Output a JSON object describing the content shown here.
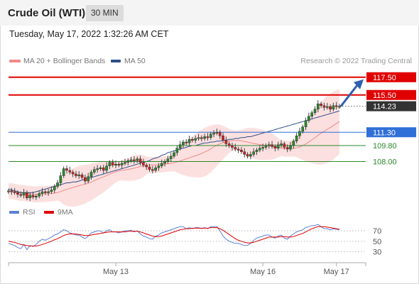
{
  "header": {
    "title": "Crude Oil (WTI)",
    "timeframe": "30 MIN",
    "datetime": "Tuesday, May 17, 2022 1:32:26 AM CET"
  },
  "legend": {
    "items": [
      {
        "label": "MA 20 + Bollinger Bands",
        "color": "#f08a8a"
      },
      {
        "label": "MA 50",
        "color": "#2d4e8a"
      }
    ],
    "credit": "Research © 2022 Trading Central"
  },
  "chart_data": [
    {
      "type": "candlestick",
      "x_ticks": [
        "May 13",
        "May 16",
        "May 17"
      ],
      "y_range": [
        103,
        119
      ],
      "last_price": 114.23,
      "levels": [
        {
          "value": 117.5,
          "label": "117.50",
          "kind": "resistance",
          "color": "#e00000"
        },
        {
          "value": 115.5,
          "label": "115.50",
          "kind": "resistance",
          "color": "#e00000"
        },
        {
          "value": 114.23,
          "label": "114.23",
          "kind": "last",
          "color": "#333333"
        },
        {
          "value": 111.3,
          "label": "111.30",
          "kind": "pivot",
          "color": "#2f6fd8"
        },
        {
          "value": 109.8,
          "label": "109.80",
          "kind": "support",
          "color": "#2a8a2a"
        },
        {
          "value": 108.0,
          "label": "108.00",
          "kind": "support",
          "color": "#2a8a2a"
        }
      ],
      "closes": [
        104.7,
        104.6,
        104.5,
        104.3,
        104.2,
        104.5,
        103.9,
        104.2,
        104.0,
        104.1,
        104.4,
        104.6,
        104.5,
        104.6,
        104.8,
        105.2,
        105.6,
        106.4,
        107.2,
        107.0,
        106.8,
        106.6,
        106.4,
        106.5,
        106.2,
        105.8,
        106.3,
        106.8,
        107.1,
        107.2,
        107.3,
        107.0,
        107.5,
        107.9,
        107.6,
        107.7,
        107.6,
        107.8,
        107.9,
        108.1,
        108.2,
        108.1,
        108.3,
        107.9,
        107.6,
        107.4,
        107.1,
        107.0,
        107.3,
        107.5,
        107.8,
        108.0,
        108.3,
        108.6,
        109.0,
        109.5,
        109.9,
        110.2,
        110.1,
        110.5,
        110.4,
        110.6,
        110.7,
        110.6,
        110.8,
        110.7,
        111.1,
        111.2,
        111.3,
        110.9,
        110.4,
        110.0,
        109.8,
        109.6,
        109.4,
        109.3,
        109.1,
        108.8,
        108.6,
        108.8,
        109.1,
        109.3,
        109.5,
        109.6,
        109.8,
        109.9,
        109.7,
        109.5,
        109.9,
        110.0,
        109.6,
        109.4,
        109.8,
        110.3,
        110.9,
        111.4,
        111.9,
        112.6,
        113.1,
        113.5,
        113.9,
        114.5,
        114.3,
        114.1,
        114.2,
        113.9,
        114.3,
        114.2,
        114.23
      ],
      "ma50": [
        104.9,
        104.8,
        104.7,
        104.6,
        104.5,
        104.5,
        104.5,
        104.5,
        104.5,
        104.6,
        104.7,
        104.8,
        104.9,
        105.0,
        105.1,
        105.2,
        105.3,
        105.4,
        105.5,
        105.6,
        105.6,
        105.7,
        105.7,
        105.8,
        105.9,
        106.0,
        106.1,
        106.2,
        106.3,
        106.4,
        106.5,
        106.6,
        106.7,
        106.8,
        106.9,
        107.0,
        107.1,
        107.2,
        107.3,
        107.4,
        107.5,
        107.6,
        107.7,
        107.8,
        107.9,
        108.0,
        108.1,
        108.3,
        108.4,
        108.5,
        108.7,
        108.8,
        109.0,
        109.1,
        109.2,
        109.3,
        109.4,
        109.5,
        109.6,
        109.7,
        109.8,
        109.8,
        109.9,
        110.0,
        110.1,
        110.1,
        110.2,
        110.2,
        110.3,
        110.3,
        110.4,
        110.4,
        110.5,
        110.5,
        110.6,
        110.6,
        110.7,
        110.7,
        110.8,
        110.8,
        110.9,
        111.0,
        111.1,
        111.2,
        111.3,
        111.4,
        111.5,
        111.6,
        111.7,
        111.8,
        111.9,
        112.0,
        112.1,
        112.2,
        112.3,
        112.4,
        112.5,
        112.6,
        112.7,
        112.8,
        112.9,
        113.0,
        113.1,
        113.2,
        113.3,
        113.4,
        113.5,
        113.6,
        113.7
      ]
    },
    {
      "type": "line",
      "series": [
        {
          "name": "RSI",
          "color": "#5b7fd6",
          "values": [
            46,
            44,
            42,
            38,
            36,
            44,
            34,
            42,
            40,
            44,
            50,
            54,
            52,
            55,
            58,
            62,
            64,
            68,
            72,
            70,
            66,
            64,
            62,
            62,
            58,
            55,
            60,
            66,
            68,
            70,
            70,
            66,
            70,
            72,
            68,
            68,
            66,
            68,
            70,
            70,
            71,
            68,
            70,
            64,
            60,
            58,
            55,
            54,
            60,
            62,
            66,
            68,
            70,
            72,
            74,
            76,
            78,
            78,
            74,
            76,
            74,
            76,
            76,
            74,
            76,
            74,
            78,
            78,
            78,
            70,
            60,
            54,
            50,
            48,
            46,
            46,
            44,
            42,
            42,
            46,
            52,
            56,
            58,
            60,
            62,
            62,
            58,
            56,
            60,
            62,
            56,
            54,
            60,
            64,
            68,
            70,
            72,
            76,
            78,
            80,
            80,
            82,
            78,
            74,
            74,
            72,
            74,
            73,
            72
          ]
        },
        {
          "name": "9MA",
          "color": "#e00000",
          "values": [
            50,
            49,
            48,
            46,
            44,
            43,
            42,
            41,
            41,
            41,
            42,
            44,
            46,
            48,
            50,
            53,
            55,
            58,
            61,
            63,
            64,
            64,
            64,
            63,
            62,
            61,
            61,
            62,
            63,
            64,
            65,
            66,
            67,
            68,
            68,
            68,
            68,
            68,
            68,
            69,
            69,
            69,
            69,
            68,
            66,
            64,
            62,
            60,
            59,
            59,
            60,
            62,
            64,
            66,
            68,
            70,
            72,
            73,
            74,
            74,
            75,
            75,
            75,
            75,
            75,
            75,
            76,
            76,
            76,
            74,
            71,
            67,
            63,
            59,
            55,
            52,
            50,
            48,
            47,
            47,
            48,
            50,
            52,
            54,
            56,
            58,
            58,
            58,
            58,
            59,
            59,
            58,
            58,
            59,
            61,
            63,
            65,
            68,
            71,
            74,
            76,
            78,
            78,
            78,
            77,
            76,
            75,
            74,
            73
          ]
        }
      ],
      "y_ticks": [
        30,
        50,
        70
      ],
      "y_range": [
        20,
        85
      ]
    }
  ]
}
